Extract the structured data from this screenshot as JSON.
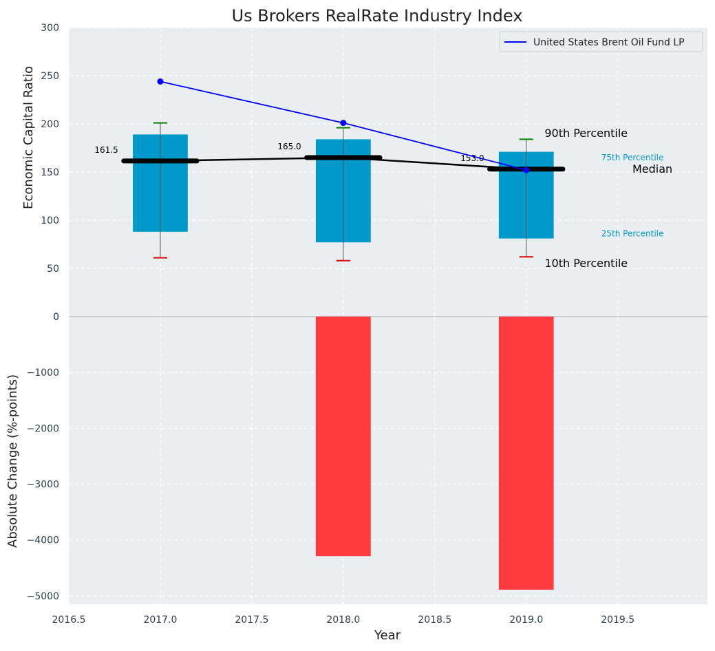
{
  "colors": {
    "panel_bg": "#eaeef0",
    "grid": "#ffffff",
    "tick_text": "#2d3e50",
    "box_fill": "#0099cc",
    "whisker": "#555555",
    "p90_cap": "#008000",
    "p10_cap": "#e00000",
    "median": "#000000",
    "fund_line": "#0000ff",
    "bar": "#ff3b3f",
    "annot_blue": "#0099cc"
  },
  "chart_data": [
    {
      "type": "box",
      "title": "Us Brokers RealRate Industry Index",
      "ylabel": "Economic Capital Ratio",
      "xlim": [
        2016.5,
        2019.99
      ],
      "ylim": [
        0,
        300
      ],
      "xticks": [
        2016.5,
        2017.0,
        2017.5,
        2018.0,
        2018.5,
        2019.0,
        2019.5
      ],
      "xtick_labels": [
        "2016.5",
        "2017.0",
        "2017.5",
        "2018.0",
        "2018.5",
        "2019.0",
        "2019.5"
      ],
      "yticks": [
        0,
        50,
        100,
        150,
        200,
        250,
        300
      ],
      "ytick_labels": [
        "0",
        "50",
        "100",
        "150",
        "200",
        "250",
        "300"
      ],
      "box_width": 0.3,
      "boxes": [
        {
          "x": 2017.0,
          "p10": 61,
          "p25": 88,
          "median": 161.5,
          "p75": 189,
          "p90": 201,
          "label": "161.5"
        },
        {
          "x": 2018.0,
          "p10": 58,
          "p25": 77,
          "median": 165.0,
          "p75": 184,
          "p90": 196,
          "label": "165.0"
        },
        {
          "x": 2019.0,
          "p10": 62,
          "p25": 81,
          "median": 153.0,
          "p75": 171,
          "p90": 184,
          "label": "153.0"
        }
      ],
      "median_line": {
        "x": [
          2017.0,
          2018.0,
          2019.0
        ],
        "y": [
          161.5,
          165.0,
          153.0
        ]
      },
      "series": [
        {
          "name": "United States Brent Oil Fund LP",
          "x": [
            2017.0,
            2018.0,
            2019.0
          ],
          "y": [
            244,
            201,
            152
          ]
        }
      ],
      "legend": {
        "position": "top-right",
        "entries": [
          "United States Brent Oil Fund LP"
        ]
      },
      "annotations": {
        "p90": {
          "text": "90th Percentile",
          "x": 2019.1,
          "y": 190
        },
        "p75": {
          "text": "75th Percentile",
          "x": 2019.41,
          "y": 165
        },
        "median": {
          "text": "Median",
          "x": 2019.58,
          "y": 153
        },
        "p25": {
          "text": "25th Percentile",
          "x": 2019.41,
          "y": 86
        },
        "p10": {
          "text": "10th Percentile",
          "x": 2019.1,
          "y": 55
        }
      }
    },
    {
      "type": "bar",
      "xlabel": "Year",
      "ylabel": "Absolute Change (%-points)",
      "xlim": [
        2016.5,
        2019.99
      ],
      "ylim": [
        -5150,
        0
      ],
      "xticks": [
        2016.5,
        2017.0,
        2017.5,
        2018.0,
        2018.5,
        2019.0,
        2019.5
      ],
      "xtick_labels": [
        "2016.5",
        "2017.0",
        "2017.5",
        "2018.0",
        "2018.5",
        "2019.0",
        "2019.5"
      ],
      "yticks": [
        0,
        -1000,
        -2000,
        -3000,
        -4000,
        -5000
      ],
      "ytick_labels": [
        "0",
        "−1000",
        "−2000",
        "−3000",
        "−4000",
        "−5000"
      ],
      "bar_width": 0.3,
      "x": [
        2018.0,
        2019.0
      ],
      "values": [
        -4290,
        -4890
      ]
    }
  ]
}
